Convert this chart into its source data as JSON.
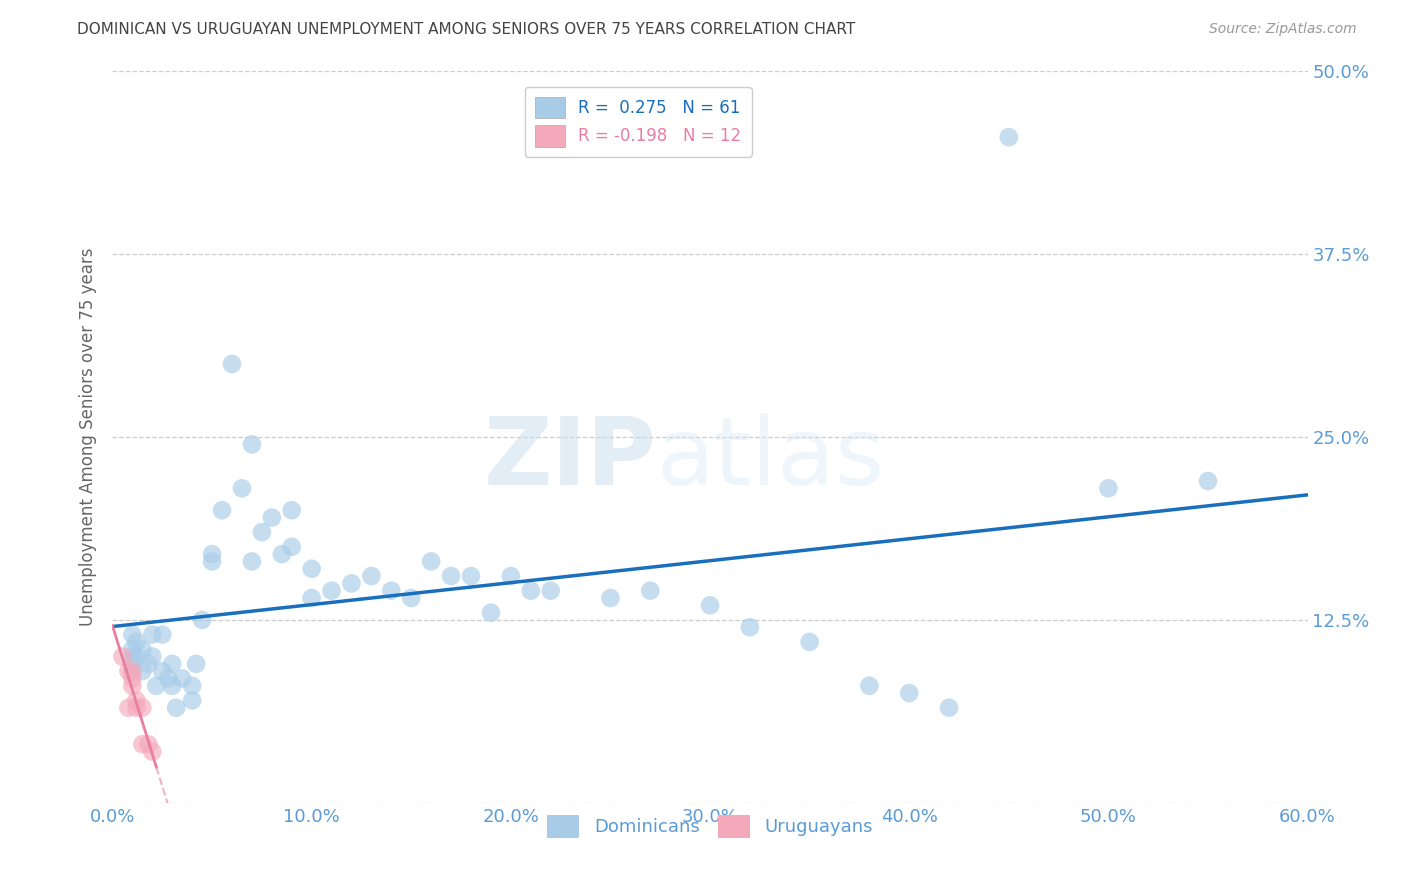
{
  "title": "DOMINICAN VS URUGUAYAN UNEMPLOYMENT AMONG SENIORS OVER 75 YEARS CORRELATION CHART",
  "source": "Source: ZipAtlas.com",
  "ylabel": "Unemployment Among Seniors over 75 years",
  "xlim": [
    0.0,
    0.6
  ],
  "ylim": [
    0.0,
    0.5
  ],
  "xticks": [
    0.0,
    0.1,
    0.2,
    0.3,
    0.4,
    0.5,
    0.6
  ],
  "yticks": [
    0.0,
    0.125,
    0.25,
    0.375,
    0.5
  ],
  "ytick_labels": [
    "",
    "12.5%",
    "25.0%",
    "37.5%",
    "50.0%"
  ],
  "xtick_labels": [
    "0.0%",
    "10.0%",
    "20.0%",
    "30.0%",
    "40.0%",
    "50.0%",
    "60.0%"
  ],
  "dominican_color": "#a8cce8",
  "uruguayan_color": "#f4a9bb",
  "line_dominican_color": "#1a6fbd",
  "line_uruguayan_color": "#e87fa0",
  "R_dominican": 0.275,
  "N_dominican": 61,
  "R_uruguayan": -0.198,
  "N_uruguayan": 12,
  "dominican_x": [
    0.01,
    0.01,
    0.01,
    0.01,
    0.01,
    0.012,
    0.012,
    0.015,
    0.015,
    0.018,
    0.02,
    0.02,
    0.022,
    0.025,
    0.025,
    0.028,
    0.03,
    0.03,
    0.032,
    0.035,
    0.04,
    0.04,
    0.042,
    0.045,
    0.05,
    0.05,
    0.055,
    0.06,
    0.065,
    0.07,
    0.07,
    0.075,
    0.08,
    0.085,
    0.09,
    0.09,
    0.1,
    0.1,
    0.11,
    0.12,
    0.13,
    0.14,
    0.15,
    0.16,
    0.17,
    0.18,
    0.19,
    0.2,
    0.21,
    0.22,
    0.25,
    0.27,
    0.3,
    0.32,
    0.35,
    0.38,
    0.4,
    0.42,
    0.45,
    0.5,
    0.55
  ],
  "dominican_y": [
    0.115,
    0.105,
    0.1,
    0.095,
    0.09,
    0.1,
    0.11,
    0.105,
    0.09,
    0.095,
    0.1,
    0.115,
    0.08,
    0.09,
    0.115,
    0.085,
    0.08,
    0.095,
    0.065,
    0.085,
    0.07,
    0.08,
    0.095,
    0.125,
    0.165,
    0.17,
    0.2,
    0.3,
    0.215,
    0.245,
    0.165,
    0.185,
    0.195,
    0.17,
    0.175,
    0.2,
    0.16,
    0.14,
    0.145,
    0.15,
    0.155,
    0.145,
    0.14,
    0.165,
    0.155,
    0.155,
    0.13,
    0.155,
    0.145,
    0.145,
    0.14,
    0.145,
    0.135,
    0.12,
    0.11,
    0.08,
    0.075,
    0.065,
    0.455,
    0.215,
    0.22
  ],
  "uruguayan_x": [
    0.005,
    0.008,
    0.008,
    0.01,
    0.01,
    0.01,
    0.012,
    0.012,
    0.015,
    0.015,
    0.018,
    0.02
  ],
  "uruguayan_y": [
    0.1,
    0.09,
    0.065,
    0.09,
    0.085,
    0.08,
    0.07,
    0.065,
    0.065,
    0.04,
    0.04,
    0.035
  ],
  "watermark_zip": "ZIP",
  "watermark_atlas": "atlas",
  "background_color": "#ffffff",
  "grid_color": "#cccccc",
  "tick_color": "#5b9bd5",
  "title_color": "#444444",
  "ylabel_color": "#666666"
}
